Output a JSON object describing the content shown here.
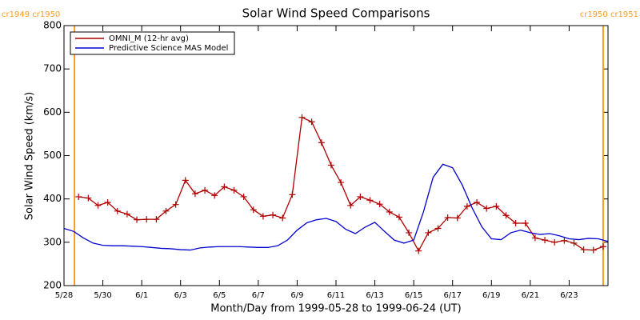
{
  "chart_data": {
    "type": "line",
    "title": "Solar Wind Speed Comparisons",
    "xlabel": "Month/Day from 1999-05-28 to 1999-06-24 (UT)",
    "ylabel": "Solar Wind Speed (km/s)",
    "xlim": [
      0,
      28
    ],
    "ylim": [
      200,
      800
    ],
    "xticks": [
      {
        "value": 0,
        "label": "5/28"
      },
      {
        "value": 2,
        "label": "5/30"
      },
      {
        "value": 4,
        "label": "6/1"
      },
      {
        "value": 6,
        "label": "6/3"
      },
      {
        "value": 8,
        "label": "6/5"
      },
      {
        "value": 10,
        "label": "6/7"
      },
      {
        "value": 12,
        "label": "6/9"
      },
      {
        "value": 14,
        "label": "6/11"
      },
      {
        "value": 16,
        "label": "6/13"
      },
      {
        "value": 18,
        "label": "6/15"
      },
      {
        "value": 20,
        "label": "6/17"
      },
      {
        "value": 22,
        "label": "6/19"
      },
      {
        "value": 24,
        "label": "6/21"
      },
      {
        "value": 26,
        "label": "6/23"
      }
    ],
    "yticks": [
      200,
      300,
      400,
      500,
      600,
      700,
      800
    ],
    "legend": "upper left",
    "vlines": [
      {
        "x": 0.54,
        "label": "cr1949 cr1950",
        "color": "#ff9a1f"
      },
      {
        "x": 27.75,
        "label": "cr1950 cr1951",
        "color": "#ff9a1f"
      }
    ],
    "series": [
      {
        "name": "OMNI_M (12-hr avg)",
        "color": "#b00000",
        "markers": true,
        "x": [
          0.75,
          1.25,
          1.75,
          2.25,
          2.75,
          3.25,
          3.75,
          4.25,
          4.75,
          5.25,
          5.75,
          6.25,
          6.75,
          7.25,
          7.75,
          8.25,
          8.75,
          9.25,
          9.75,
          10.25,
          10.75,
          11.25,
          11.75,
          12.25,
          12.75,
          13.25,
          13.75,
          14.25,
          14.75,
          15.25,
          15.75,
          16.25,
          16.75,
          17.25,
          17.75,
          18.25,
          18.75,
          19.25,
          19.75,
          20.25,
          20.75,
          21.25,
          21.75,
          22.25,
          22.75,
          23.25,
          23.75,
          24.25,
          24.75,
          25.25,
          25.75,
          26.25,
          26.75,
          27.25,
          27.75
        ],
        "values": [
          405,
          402,
          385,
          392,
          372,
          365,
          352,
          353,
          353,
          372,
          387,
          443,
          412,
          420,
          408,
          428,
          420,
          405,
          375,
          360,
          363,
          356,
          410,
          588,
          578,
          530,
          478,
          438,
          385,
          405,
          397,
          388,
          370,
          358,
          322,
          280,
          322,
          332,
          357,
          356,
          383,
          392,
          378,
          383,
          362,
          344,
          344,
          310,
          305,
          300,
          304,
          298,
          283,
          282,
          290
        ]
      },
      {
        "name": "Predictive Science MAS Model",
        "color": "#0000d0",
        "markers": false,
        "x": [
          0,
          0.5,
          1,
          1.5,
          2,
          2.5,
          3,
          3.5,
          4,
          4.5,
          5,
          5.5,
          6,
          6.5,
          7,
          7.5,
          8,
          8.5,
          9,
          9.5,
          10,
          10.5,
          11,
          11.5,
          12,
          12.5,
          13,
          13.5,
          14,
          14.5,
          15,
          15.5,
          16,
          16.5,
          17,
          17.5,
          18,
          18.5,
          19,
          19.5,
          20,
          20.5,
          21,
          21.5,
          22,
          22.5,
          23,
          23.5,
          24,
          24.5,
          25,
          25.5,
          26,
          26.5,
          27,
          27.5,
          28
        ],
        "values": [
          332,
          325,
          310,
          298,
          293,
          292,
          292,
          291,
          290,
          288,
          286,
          285,
          283,
          282,
          287,
          289,
          290,
          290,
          290,
          289,
          288,
          288,
          292,
          305,
          328,
          345,
          352,
          355,
          348,
          330,
          320,
          335,
          346,
          325,
          305,
          298,
          305,
          370,
          450,
          480,
          472,
          432,
          380,
          336,
          308,
          306,
          322,
          328,
          322,
          318,
          320,
          315,
          308,
          306,
          309,
          308,
          302
        ]
      }
    ]
  }
}
